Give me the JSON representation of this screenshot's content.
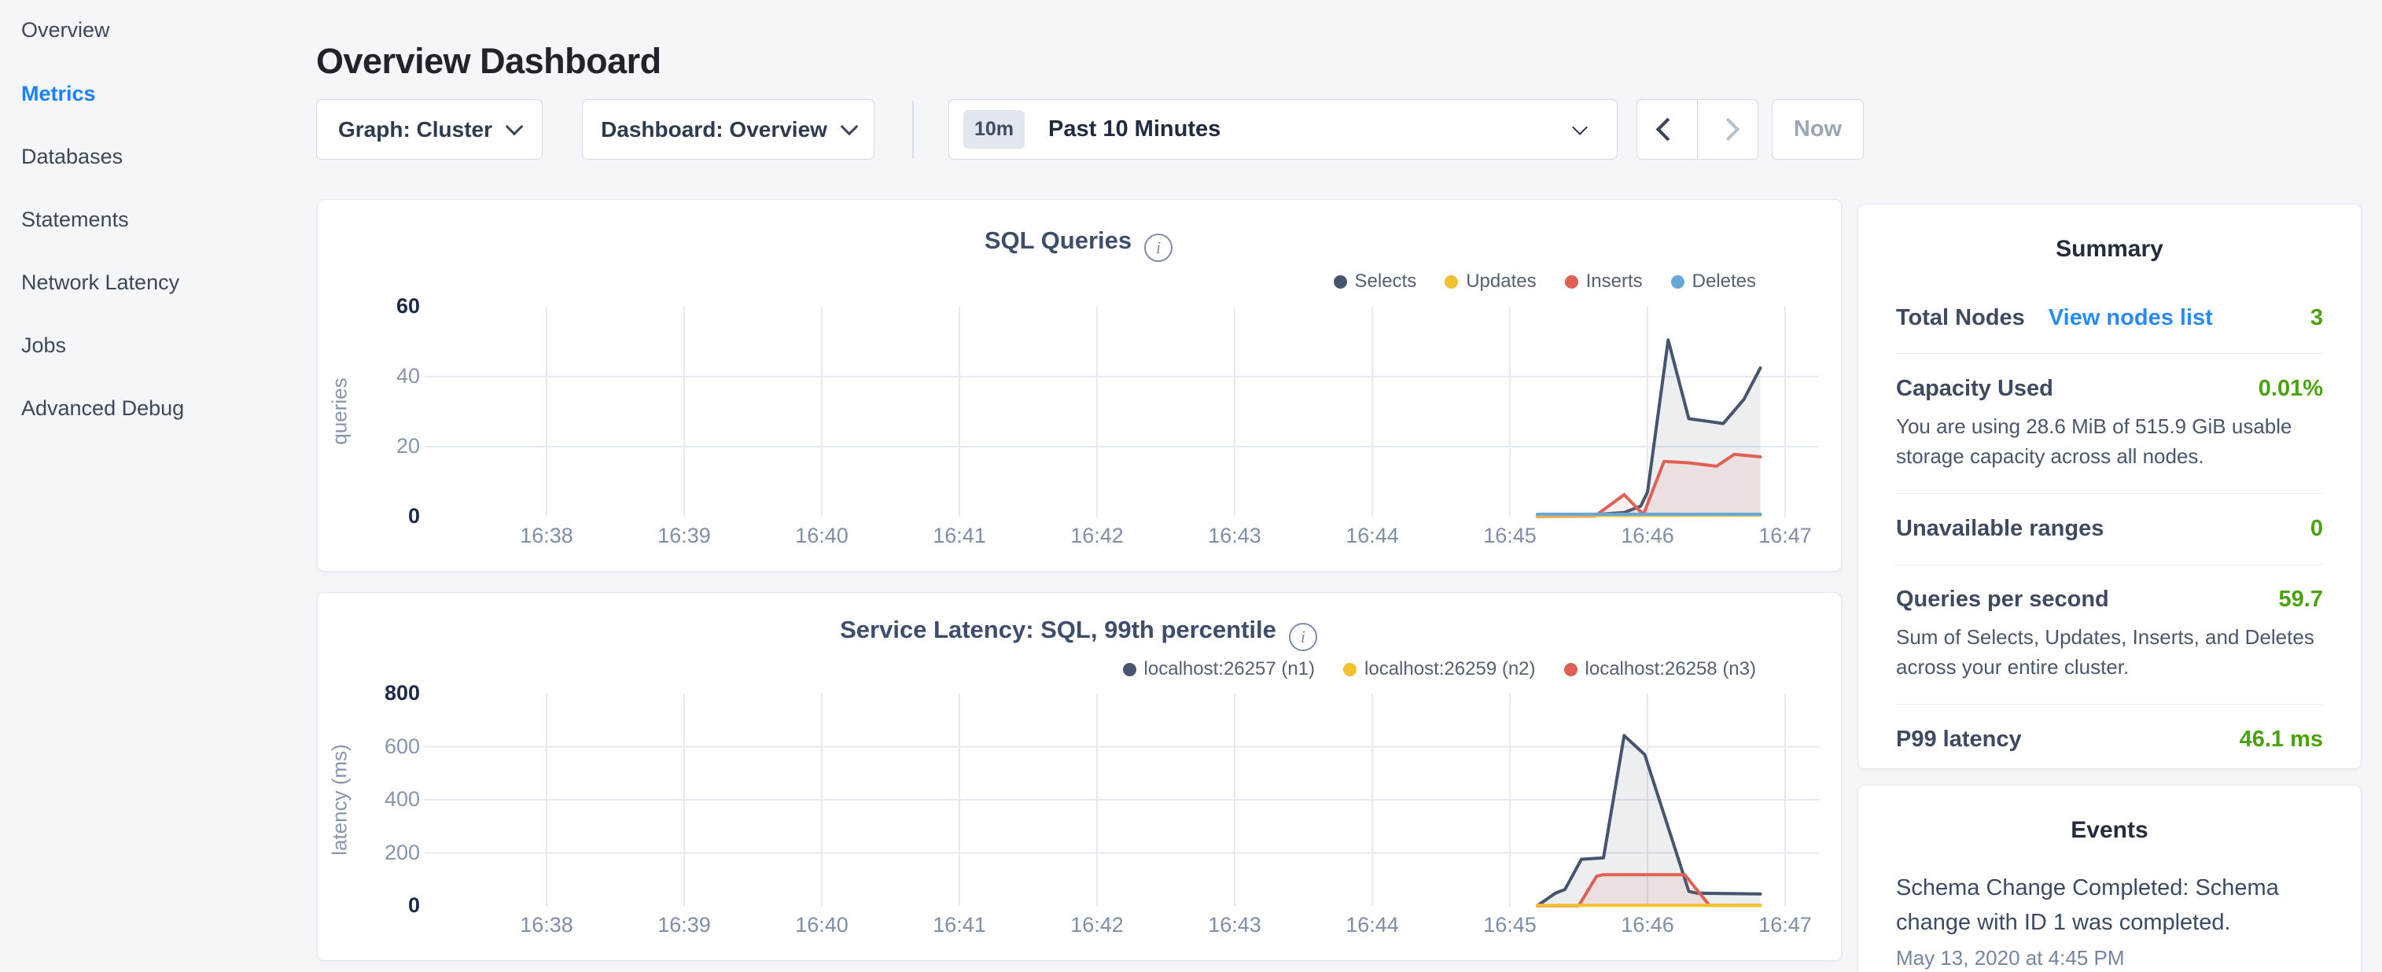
{
  "page": {
    "background": "#f4f6fa"
  },
  "sidebar": {
    "items": [
      {
        "label": "Overview",
        "active": false
      },
      {
        "label": "Metrics",
        "active": true
      },
      {
        "label": "Databases",
        "active": false
      },
      {
        "label": "Statements",
        "active": false
      },
      {
        "label": "Network Latency",
        "active": false
      },
      {
        "label": "Jobs",
        "active": false
      },
      {
        "label": "Advanced Debug",
        "active": false
      }
    ],
    "active_color": "#1d82f5"
  },
  "header": {
    "title": "Overview Dashboard"
  },
  "controls": {
    "graph_dropdown": {
      "label": "Graph: Cluster"
    },
    "dashboard_dropdown": {
      "label": "Dashboard: Overview"
    },
    "time_range": {
      "badge": "10m",
      "label": "Past 10 Minutes"
    },
    "now_button": {
      "label": "Now",
      "disabled": true
    },
    "prev_arrow": {
      "disabled": false
    },
    "next_arrow": {
      "disabled": true
    }
  },
  "charts": [
    {
      "chart_data": {
        "type": "area",
        "title": "SQL Queries",
        "ylabel": "queries",
        "xlabel": "",
        "ylim": [
          0,
          60
        ],
        "yticks": [
          0,
          20,
          40,
          60
        ],
        "grid_yticks": [
          20,
          40
        ],
        "xticks": [
          "16:38",
          "16:39",
          "16:40",
          "16:41",
          "16:42",
          "16:43",
          "16:44",
          "16:45",
          "16:46",
          "16:47"
        ],
        "legend_position": "top-right",
        "x_unit": "minutes after 16:38",
        "series": [
          {
            "name": "Selects",
            "color": "#46546e",
            "fill": true,
            "points": [
              [
                7.2,
                0.4
              ],
              [
                7.62,
                0.6
              ],
              [
                7.83,
                1.2
              ],
              [
                7.95,
                3
              ],
              [
                8.0,
                7
              ],
              [
                8.15,
                50.5
              ],
              [
                8.3,
                28
              ],
              [
                8.45,
                27.2
              ],
              [
                8.55,
                26.6
              ],
              [
                8.7,
                33.5
              ],
              [
                8.82,
                42.5
              ]
            ]
          },
          {
            "name": "Updates",
            "color": "#f1c12f",
            "fill": false,
            "points": [
              [
                7.2,
                0.3
              ],
              [
                8.82,
                0.45
              ]
            ]
          },
          {
            "name": "Inserts",
            "color": "#df6156",
            "fill": true,
            "points": [
              [
                7.2,
                0.1
              ],
              [
                7.62,
                0.2
              ],
              [
                7.83,
                6.3
              ],
              [
                7.97,
                0.6
              ],
              [
                8.12,
                15.8
              ],
              [
                8.3,
                15.4
              ],
              [
                8.5,
                14.4
              ],
              [
                8.63,
                17.8
              ],
              [
                8.82,
                17.1
              ]
            ]
          },
          {
            "name": "Deletes",
            "color": "#67a7d8",
            "fill": false,
            "points": [
              [
                7.2,
                0.7
              ],
              [
                8.82,
                0.7
              ]
            ]
          }
        ]
      }
    },
    {
      "chart_data": {
        "type": "area",
        "title": "Service Latency: SQL, 99th percentile",
        "ylabel": "latency (ms)",
        "xlabel": "",
        "ylim": [
          0,
          800
        ],
        "yticks": [
          0,
          200,
          400,
          600,
          800
        ],
        "grid_yticks": [
          200,
          400,
          600
        ],
        "xticks": [
          "16:38",
          "16:39",
          "16:40",
          "16:41",
          "16:42",
          "16:43",
          "16:44",
          "16:45",
          "16:46",
          "16:47"
        ],
        "legend_position": "top-right",
        "x_unit": "minutes after 16:38",
        "series": [
          {
            "name": "localhost:26257 (n1)",
            "color": "#46546e",
            "fill": true,
            "points": [
              [
                7.2,
                1
              ],
              [
                7.33,
                48
              ],
              [
                7.4,
                62
              ],
              [
                7.52,
                176
              ],
              [
                7.68,
                181
              ],
              [
                7.83,
                642
              ],
              [
                7.98,
                570
              ],
              [
                8.3,
                55
              ],
              [
                8.36,
                48
              ],
              [
                8.82,
                45
              ]
            ]
          },
          {
            "name": "localhost:26259 (n2)",
            "color": "#f1c12f",
            "fill": false,
            "points": [
              [
                7.2,
                2
              ],
              [
                8.82,
                2
              ]
            ]
          },
          {
            "name": "localhost:26258 (n3)",
            "color": "#df6156",
            "fill": true,
            "points": [
              [
                7.2,
                0.5
              ],
              [
                7.5,
                1
              ],
              [
                7.63,
                112
              ],
              [
                7.68,
                118
              ],
              [
                8.27,
                118
              ],
              [
                8.45,
                2
              ],
              [
                8.82,
                2
              ]
            ]
          }
        ]
      }
    }
  ],
  "summary": {
    "title": "Summary",
    "rows": [
      {
        "label": "Total Nodes",
        "link": "View nodes list",
        "value": "3",
        "description": ""
      },
      {
        "label": "Capacity Used",
        "link": "",
        "value": "0.01%",
        "description": "You are using 28.6 MiB of 515.9 GiB usable storage capacity across all nodes."
      },
      {
        "label": "Unavailable ranges",
        "link": "",
        "value": "0",
        "description": ""
      },
      {
        "label": "Queries per second",
        "link": "",
        "value": "59.7",
        "description": "Sum of Selects, Updates, Inserts, and Deletes across your entire cluster."
      },
      {
        "label": "P99 latency",
        "link": "",
        "value": "46.1 ms",
        "description": ""
      }
    ],
    "value_color": "#4ca110",
    "link_color": "#2a8af2"
  },
  "events": {
    "title": "Events",
    "items": [
      {
        "text": "Schema Change Completed: Schema change with ID 1 was completed.",
        "timestamp": "May 13, 2020 at 4:45 PM"
      }
    ]
  }
}
